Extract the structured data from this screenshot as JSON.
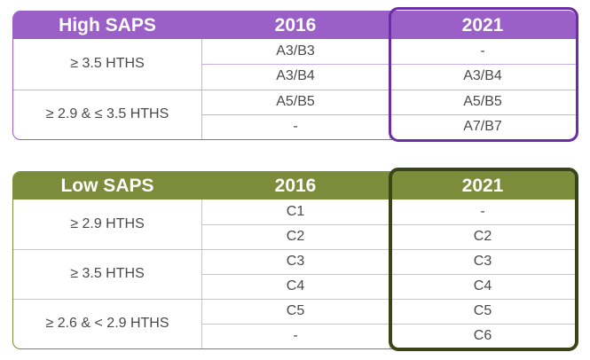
{
  "colors": {
    "high_accent": "#9b5fc8",
    "high_line": "#c8aee4",
    "high_highlight": "#6a2fa4",
    "low_accent": "#7d8c3a",
    "low_line": "#c5cf9a",
    "low_highlight": "#3a4419"
  },
  "high_table": {
    "header": {
      "label": "High SAPS",
      "col1": "2016",
      "col2": "2021"
    },
    "groups": [
      {
        "criterion": "≥ 3.5 HTHS",
        "rows": [
          [
            "A3/B3",
            "-"
          ],
          [
            "A3/B4",
            "A3/B4"
          ]
        ]
      },
      {
        "criterion": "≥ 2.9 & ≤ 3.5 HTHS",
        "rows": [
          [
            "A5/B5",
            "A5/B5"
          ],
          [
            "-",
            "A7/B7"
          ]
        ]
      }
    ]
  },
  "low_table": {
    "header": {
      "label": "Low SAPS",
      "col1": "2016",
      "col2": "2021"
    },
    "groups": [
      {
        "criterion": "≥ 2.9 HTHS",
        "rows": [
          [
            "C1",
            "-"
          ],
          [
            "C2",
            "C2"
          ]
        ]
      },
      {
        "criterion": "≥ 3.5 HTHS",
        "rows": [
          [
            "C3",
            "C3"
          ],
          [
            "C4",
            "C4"
          ]
        ]
      },
      {
        "criterion": "≥ 2.6 & < 2.9 HTHS",
        "rows": [
          [
            "C5",
            "C5"
          ],
          [
            "-",
            "C6"
          ]
        ]
      }
    ]
  }
}
